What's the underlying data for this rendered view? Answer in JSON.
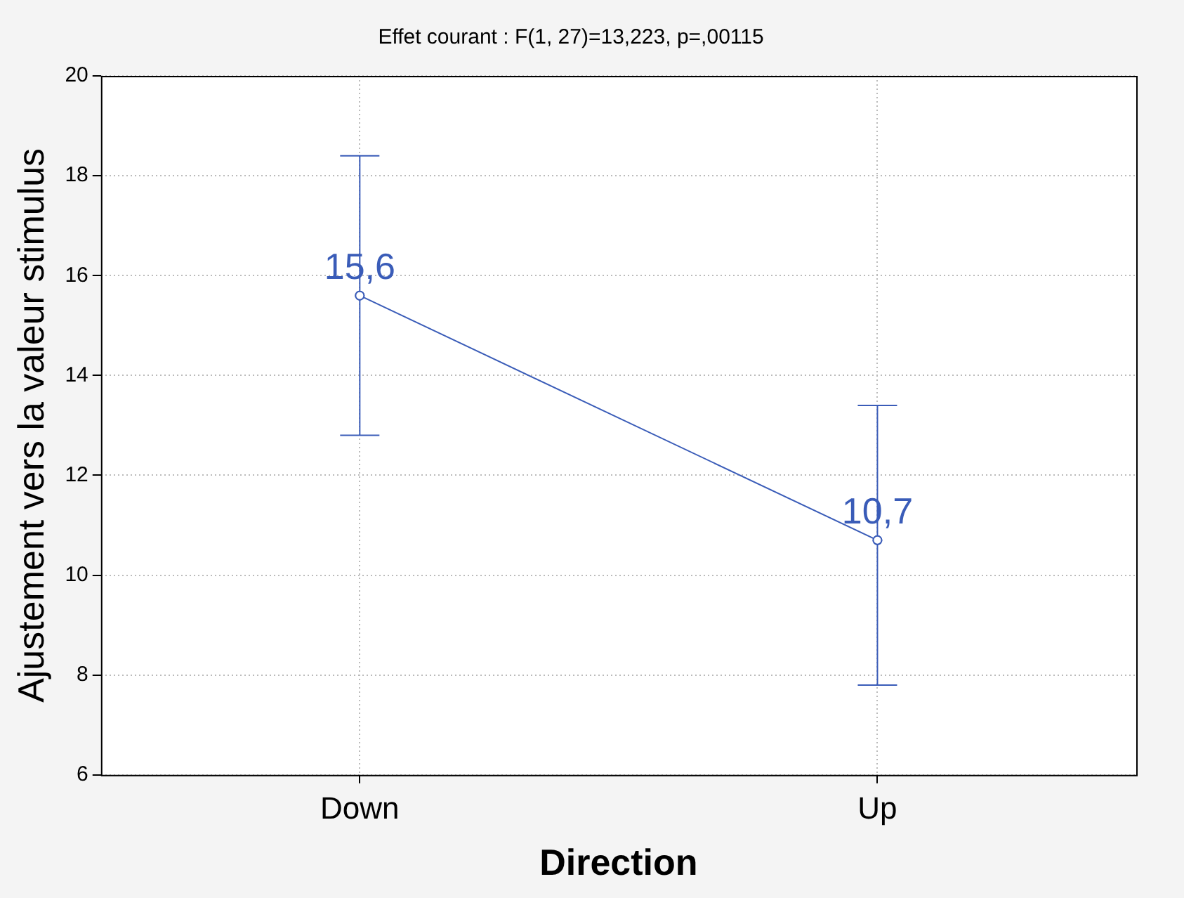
{
  "chart_data": {
    "type": "line",
    "title": "Effet courant : F(1, 27)=13,223, p=,00115",
    "xlabel": "Direction",
    "ylabel": "Ajustement vers la valeur stimulus",
    "categories": [
      "Down",
      "Up"
    ],
    "series": [
      {
        "color": "#3a5cb8",
        "values": [
          15.6,
          10.7
        ],
        "errors": [
          [
            12.8,
            18.4
          ],
          [
            7.8,
            13.4
          ]
        ],
        "value_labels": [
          "15,6",
          "10,7"
        ]
      }
    ],
    "ylim": [
      6,
      20
    ],
    "yticks": [
      6,
      8,
      10,
      12,
      14,
      16,
      18,
      20
    ],
    "grid": true,
    "legend": false,
    "marker": "circle",
    "line_style": "solid"
  }
}
